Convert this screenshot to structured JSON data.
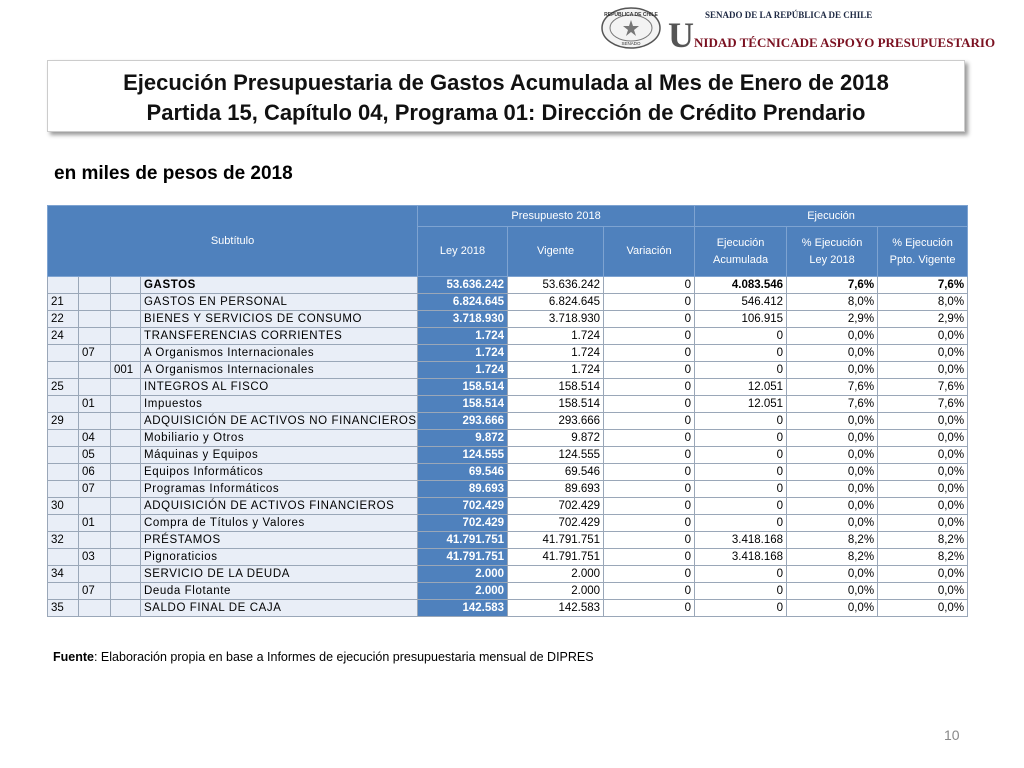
{
  "header": {
    "seal_top": "REPÚBLICA DE CHILE",
    "seal_bottom": "SENADO",
    "org_top": "SENADO DE LA REPÚBLICA DE CHILE",
    "org_name": "UNIDAD TÉCNICADE ASPOYO PRESUPUESTARIO"
  },
  "title": {
    "line1": "Ejecución Presupuestaria de Gastos Acumulada al Mes de Enero de 2018",
    "line2": "Partida 15, Capítulo 04, Programa 01: Dirección de Crédito Prendario"
  },
  "subtitle": "en miles de pesos de 2018",
  "table": {
    "head": {
      "subtitulo": "Subtítulo",
      "presupuesto": "Presupuesto 2018",
      "ejecucion": "Ejecución",
      "columns": [
        "Ley 2018",
        "Vigente",
        "Variación",
        "Ejecución Acumulada",
        "% Ejecución Ley 2018",
        "% Ejecución Ppto. Vigente"
      ]
    },
    "rows": [
      {
        "name": "GASTOS",
        "values": [
          "53.636.242",
          "53.636.242",
          "0",
          "4.083.546",
          "7,6%",
          "7,6%"
        ]
      },
      {
        "sub": "21",
        "name": "GASTOS EN PERSONAL",
        "values": [
          "6.824.645",
          "6.824.645",
          "0",
          "546.412",
          "8,0%",
          "8,0%"
        ]
      },
      {
        "sub": "22",
        "name": "BIENES Y SERVICIOS DE CONSUMO",
        "values": [
          "3.718.930",
          "3.718.930",
          "0",
          "106.915",
          "2,9%",
          "2,9%"
        ]
      },
      {
        "sub": "24",
        "name": "TRANSFERENCIAS CORRIENTES",
        "values": [
          "1.724",
          "1.724",
          "0",
          "0",
          "0,0%",
          "0,0%"
        ]
      },
      {
        "item": "07",
        "name": "A Organismos Internacionales",
        "values": [
          "1.724",
          "1.724",
          "0",
          "0",
          "0,0%",
          "0,0%"
        ]
      },
      {
        "asig": "001",
        "name": "A Organismos Internacionales",
        "values": [
          "1.724",
          "1.724",
          "0",
          "0",
          "0,0%",
          "0,0%"
        ]
      },
      {
        "sub": "25",
        "name": "INTEGROS AL FISCO",
        "values": [
          "158.514",
          "158.514",
          "0",
          "12.051",
          "7,6%",
          "7,6%"
        ]
      },
      {
        "item": "01",
        "name": "Impuestos",
        "values": [
          "158.514",
          "158.514",
          "0",
          "12.051",
          "7,6%",
          "7,6%"
        ]
      },
      {
        "sub": "29",
        "name": "ADQUISICIÓN DE ACTIVOS NO FINANCIEROS",
        "values": [
          "293.666",
          "293.666",
          "0",
          "0",
          "0,0%",
          "0,0%"
        ]
      },
      {
        "item": "04",
        "name": "Mobiliario y Otros",
        "values": [
          "9.872",
          "9.872",
          "0",
          "0",
          "0,0%",
          "0,0%"
        ]
      },
      {
        "item": "05",
        "name": "Máquinas y Equipos",
        "values": [
          "124.555",
          "124.555",
          "0",
          "0",
          "0,0%",
          "0,0%"
        ]
      },
      {
        "item": "06",
        "name": "Equipos Informáticos",
        "values": [
          "69.546",
          "69.546",
          "0",
          "0",
          "0,0%",
          "0,0%"
        ]
      },
      {
        "item": "07",
        "name": "Programas Informáticos",
        "values": [
          "89.693",
          "89.693",
          "0",
          "0",
          "0,0%",
          "0,0%"
        ]
      },
      {
        "sub": "30",
        "name": "ADQUISICIÓN DE ACTIVOS FINANCIEROS",
        "values": [
          "702.429",
          "702.429",
          "0",
          "0",
          "0,0%",
          "0,0%"
        ]
      },
      {
        "item": "01",
        "name": "Compra de Títulos y Valores",
        "values": [
          "702.429",
          "702.429",
          "0",
          "0",
          "0,0%",
          "0,0%"
        ]
      },
      {
        "sub": "32",
        "name": "PRÉSTAMOS",
        "values": [
          "41.791.751",
          "41.791.751",
          "0",
          "3.418.168",
          "8,2%",
          "8,2%"
        ]
      },
      {
        "item": "03",
        "name": "Pignoraticios",
        "values": [
          "41.791.751",
          "41.791.751",
          "0",
          "3.418.168",
          "8,2%",
          "8,2%"
        ]
      },
      {
        "sub": "34",
        "name": "SERVICIO DE LA DEUDA",
        "values": [
          "2.000",
          "2.000",
          "0",
          "0",
          "0,0%",
          "0,0%"
        ]
      },
      {
        "item": "07",
        "name": "Deuda Flotante",
        "values": [
          "2.000",
          "2.000",
          "0",
          "0",
          "0,0%",
          "0,0%"
        ]
      },
      {
        "sub": "35",
        "name": "SALDO FINAL DE CAJA",
        "values": [
          "142.583",
          "142.583",
          "0",
          "0",
          "0,0%",
          "0,0%"
        ]
      }
    ]
  },
  "footer": {
    "label": "Fuente",
    "text": ": Elaboración propia en base  a Informes de ejecución presupuestaria mensual de DIPRES"
  },
  "page_number": "10"
}
